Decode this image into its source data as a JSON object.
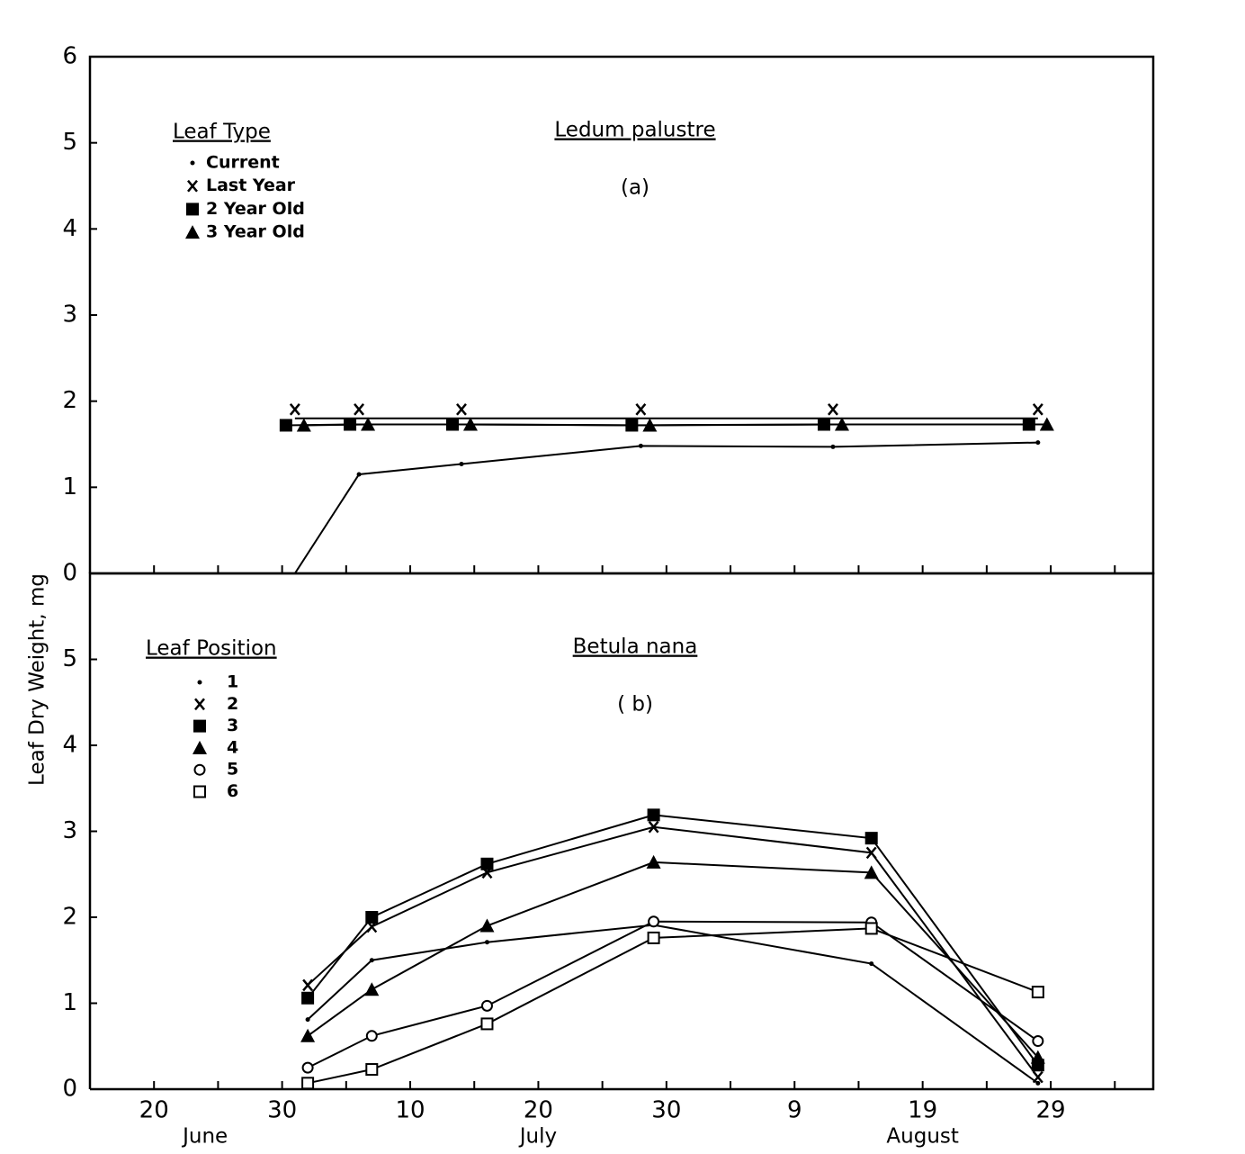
{
  "chart_data": [
    {
      "type": "line",
      "title": "Ledum palustre",
      "subtitle": "(a)",
      "ylabel": "Leaf Dry Weight, mg",
      "legend_title": "Leaf Type",
      "legend": "upper left",
      "dodge": true,
      "x": [
        "07-01",
        "07-06",
        "07-14",
        "07-28",
        "08-12",
        "08-28"
      ],
      "xlim": [
        "06-15",
        "09-06"
      ],
      "ylim": [
        0,
        6
      ],
      "yticks": [
        0,
        1,
        2,
        3,
        4,
        5,
        6
      ],
      "series": [
        {
          "name": "Current",
          "color": "#000000",
          "marker": "dot",
          "values": [
            0,
            1.15,
            1.27,
            1.48,
            1.47,
            1.52
          ]
        },
        {
          "name": "Last Year",
          "color": "#000000",
          "marker": "x",
          "values": [
            1.8,
            1.8,
            1.8,
            1.8,
            1.8,
            1.8
          ]
        },
        {
          "name": "2 Year Old",
          "color": "#000000",
          "marker": "square",
          "values": [
            1.72,
            1.73,
            1.73,
            1.72,
            1.73,
            1.73
          ]
        },
        {
          "name": "3 Year Old",
          "color": "#000000",
          "marker": "triangle",
          "values": [
            1.72,
            1.73,
            1.73,
            1.72,
            1.73,
            1.73
          ]
        }
      ]
    },
    {
      "type": "line",
      "title": "Betula nana",
      "subtitle": "( b)",
      "legend_title": "Leaf Position",
      "legend": "upper left",
      "x": [
        "07-02",
        "07-07",
        "07-16",
        "07-29",
        "08-15",
        "08-28"
      ],
      "xlim": [
        "06-15",
        "09-06"
      ],
      "xticks": [
        {
          "value": "06-20",
          "label": "20"
        },
        {
          "value": "06-30",
          "label": "30"
        },
        {
          "value": "07-10",
          "label": "10"
        },
        {
          "value": "07-20",
          "label": "20"
        },
        {
          "value": "07-30",
          "label": "30"
        },
        {
          "value": "08-09",
          "label": "9"
        },
        {
          "value": "08-19",
          "label": "19"
        },
        {
          "value": "08-29",
          "label": "29"
        }
      ],
      "xminor": [
        "06-25",
        "07-05",
        "07-15",
        "07-25",
        "08-04",
        "08-14",
        "08-24",
        "09-03"
      ],
      "xgroups": [
        {
          "value": "06-24",
          "label": "June"
        },
        {
          "value": "07-20",
          "label": "July"
        },
        {
          "value": "08-19",
          "label": "August"
        }
      ],
      "ylim": [
        0,
        6
      ],
      "yticks": [
        0,
        1,
        2,
        3,
        4,
        5
      ],
      "series": [
        {
          "name": "1",
          "color": "#000000",
          "marker": "dot",
          "values": [
            0.81,
            1.5,
            1.71,
            1.91,
            1.46,
            0.07
          ]
        },
        {
          "name": "2",
          "color": "#000000",
          "marker": "x",
          "values": [
            1.21,
            1.89,
            2.52,
            3.05,
            2.75,
            0.14
          ]
        },
        {
          "name": "3",
          "color": "#000000",
          "marker": "square",
          "values": [
            1.06,
            2.0,
            2.62,
            3.19,
            2.92,
            0.28
          ]
        },
        {
          "name": "4",
          "color": "#000000",
          "marker": "triangle",
          "values": [
            0.62,
            1.16,
            1.9,
            2.64,
            2.52,
            0.37
          ]
        },
        {
          "name": "5",
          "color": "#000000",
          "marker": "circle",
          "values": [
            0.25,
            0.62,
            0.97,
            1.95,
            1.94,
            0.56
          ]
        },
        {
          "name": "6",
          "color": "#000000",
          "marker": "open-square",
          "values": [
            0.07,
            0.23,
            0.76,
            1.76,
            1.87,
            1.13
          ]
        }
      ]
    }
  ]
}
